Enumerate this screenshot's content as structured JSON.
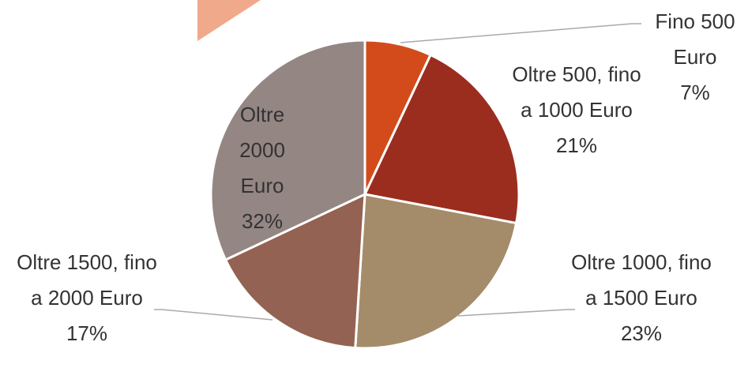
{
  "chart_data": {
    "type": "pie",
    "categories": [
      "Fino 500 Euro",
      "Oltre 500, fino a 1000 Euro",
      "Oltre 1000, fino a 1500 Euro",
      "Oltre 1500, fino a 2000 Euro",
      "Oltre 2000 Euro"
    ],
    "values": [
      7,
      21,
      23,
      17,
      32
    ],
    "value_labels": [
      "7%",
      "21%",
      "23%",
      "17%",
      "32%"
    ],
    "colors": [
      "#d34b1b",
      "#9b2d1f",
      "#a48c6a",
      "#946252",
      "#948683"
    ]
  }
}
